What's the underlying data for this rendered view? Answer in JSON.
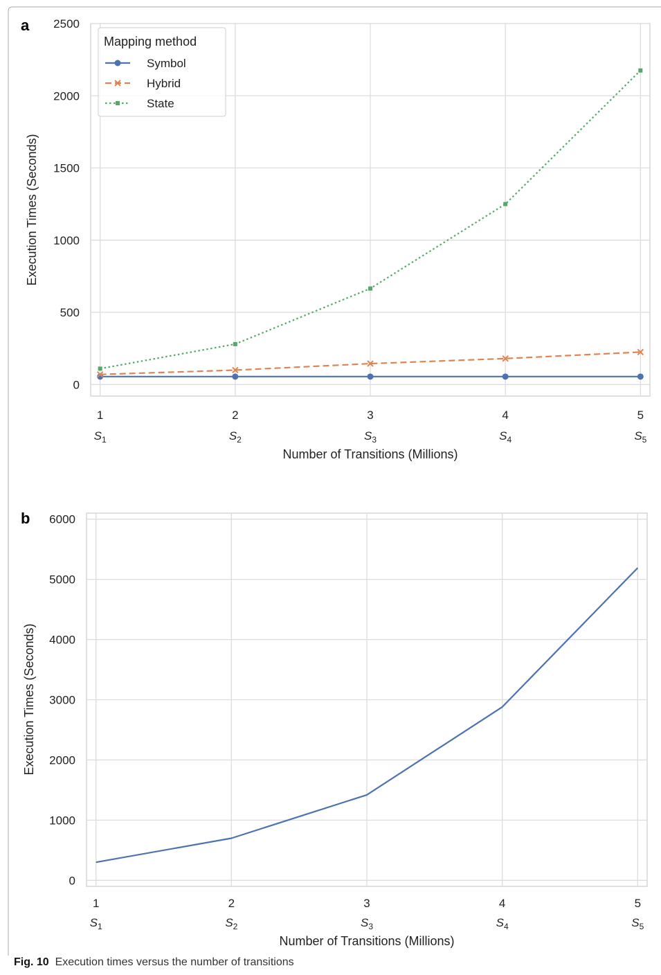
{
  "caption": {
    "label": "Fig. 10",
    "text": "Execution times versus the number of transitions"
  },
  "chart_data": [
    {
      "panel": "a",
      "type": "line",
      "xlabel": "Number of Transitions (Millions)",
      "ylabel": "Execution Times (Seconds)",
      "x": [
        1,
        2,
        3,
        4,
        5
      ],
      "x_sublabels": [
        "S1",
        "S2",
        "S3",
        "S4",
        "S5"
      ],
      "xlim": [
        0.93,
        5.07
      ],
      "ylim": [
        -80,
        2500
      ],
      "yticks": [
        0,
        500,
        1000,
        1500,
        2000,
        2500
      ],
      "grid": true,
      "legend": {
        "title": "Mapping method",
        "placement": "top-left"
      },
      "series": [
        {
          "name": "Symbol",
          "color": "#4c72b0",
          "dash": "solid",
          "marker": "circle",
          "values": [
            55,
            55,
            55,
            55,
            55
          ]
        },
        {
          "name": "Hybrid",
          "color": "#dd8452",
          "dash": "dashed",
          "marker": "x",
          "values": [
            70,
            100,
            145,
            180,
            225
          ]
        },
        {
          "name": "State",
          "color": "#55a868",
          "dash": "dotted",
          "marker": "square",
          "values": [
            110,
            280,
            665,
            1250,
            2175
          ]
        }
      ]
    },
    {
      "panel": "b",
      "type": "line",
      "xlabel": "Number of Transitions (Millions)",
      "ylabel": "Execution Times (Seconds)",
      "x": [
        1,
        2,
        3,
        4,
        5
      ],
      "x_sublabels": [
        "S1",
        "S2",
        "S3",
        "S4",
        "S5"
      ],
      "xlim": [
        0.93,
        5.07
      ],
      "ylim": [
        -100,
        6100
      ],
      "yticks": [
        0,
        1000,
        2000,
        3000,
        4000,
        5000,
        6000
      ],
      "grid": true,
      "series": [
        {
          "color": "#4c72b0",
          "dash": "solid",
          "values": [
            300,
            700,
            1420,
            2880,
            5190
          ]
        }
      ]
    }
  ]
}
